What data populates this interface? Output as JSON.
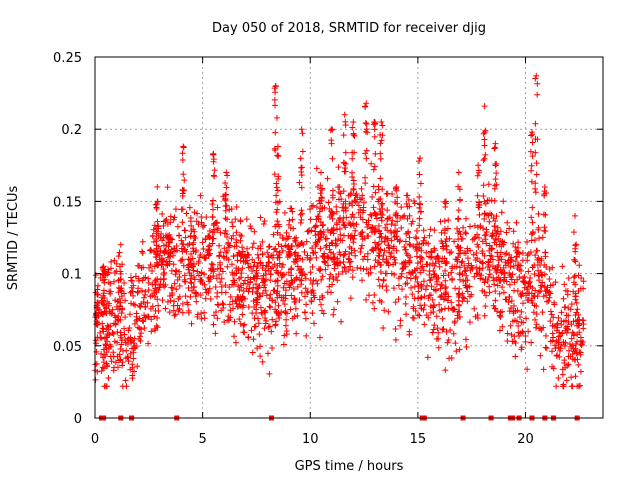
{
  "chart_data": {
    "type": "scatter",
    "title": "Day 050 of 2018, SRMTID for receiver djig",
    "xlabel": "GPS time / hours",
    "ylabel": "SRMTID / TECUs",
    "xlim": [
      0,
      23.6
    ],
    "ylim": [
      0,
      0.25
    ],
    "x_ticks": [
      0,
      5,
      10,
      15,
      20
    ],
    "y_ticks": [
      0,
      0.05,
      0.1,
      0.15,
      0.2,
      0.25
    ],
    "y_tick_labels": [
      "0",
      "0.05",
      "0.1",
      "0.15",
      "0.2",
      "0.25"
    ],
    "grid": true,
    "marker": "+",
    "color": "#ff0000",
    "trend": [
      {
        "x": 0.0,
        "y": 0.06
      },
      {
        "x": 0.5,
        "y": 0.058
      },
      {
        "x": 1.0,
        "y": 0.065
      },
      {
        "x": 1.5,
        "y": 0.06
      },
      {
        "x": 2.0,
        "y": 0.07
      },
      {
        "x": 2.5,
        "y": 0.09
      },
      {
        "x": 3.0,
        "y": 0.105
      },
      {
        "x": 3.5,
        "y": 0.112
      },
      {
        "x": 4.0,
        "y": 0.108
      },
      {
        "x": 4.5,
        "y": 0.112
      },
      {
        "x": 5.0,
        "y": 0.11
      },
      {
        "x": 5.5,
        "y": 0.108
      },
      {
        "x": 6.0,
        "y": 0.104
      },
      {
        "x": 6.5,
        "y": 0.1
      },
      {
        "x": 7.0,
        "y": 0.098
      },
      {
        "x": 7.5,
        "y": 0.094
      },
      {
        "x": 8.0,
        "y": 0.092
      },
      {
        "x": 8.5,
        "y": 0.1
      },
      {
        "x": 9.0,
        "y": 0.11
      },
      {
        "x": 9.5,
        "y": 0.104
      },
      {
        "x": 10.0,
        "y": 0.11
      },
      {
        "x": 10.5,
        "y": 0.115
      },
      {
        "x": 11.0,
        "y": 0.12
      },
      {
        "x": 11.5,
        "y": 0.125
      },
      {
        "x": 12.0,
        "y": 0.128
      },
      {
        "x": 12.5,
        "y": 0.126
      },
      {
        "x": 13.0,
        "y": 0.124
      },
      {
        "x": 13.5,
        "y": 0.118
      },
      {
        "x": 14.0,
        "y": 0.114
      },
      {
        "x": 14.5,
        "y": 0.108
      },
      {
        "x": 15.0,
        "y": 0.104
      },
      {
        "x": 15.5,
        "y": 0.094
      },
      {
        "x": 16.0,
        "y": 0.092
      },
      {
        "x": 16.5,
        "y": 0.09
      },
      {
        "x": 17.0,
        "y": 0.096
      },
      {
        "x": 17.5,
        "y": 0.104
      },
      {
        "x": 18.0,
        "y": 0.112
      },
      {
        "x": 18.5,
        "y": 0.108
      },
      {
        "x": 19.0,
        "y": 0.1
      },
      {
        "x": 19.5,
        "y": 0.088
      },
      {
        "x": 20.0,
        "y": 0.08
      },
      {
        "x": 20.5,
        "y": 0.1
      },
      {
        "x": 21.0,
        "y": 0.08
      },
      {
        "x": 21.5,
        "y": 0.058
      },
      {
        "x": 22.0,
        "y": 0.054
      },
      {
        "x": 22.5,
        "y": 0.062
      },
      {
        "x": 22.7,
        "y": 0.064
      }
    ],
    "spikes": [
      {
        "x": 0.1,
        "y": 0.08
      },
      {
        "x": 0.4,
        "y": 0.105
      },
      {
        "x": 1.2,
        "y": 0.12
      },
      {
        "x": 2.9,
        "y": 0.15
      },
      {
        "x": 4.1,
        "y": 0.188
      },
      {
        "x": 5.5,
        "y": 0.183
      },
      {
        "x": 6.1,
        "y": 0.17
      },
      {
        "x": 8.4,
        "y": 0.23
      },
      {
        "x": 8.5,
        "y": 0.188
      },
      {
        "x": 9.6,
        "y": 0.2
      },
      {
        "x": 10.5,
        "y": 0.17
      },
      {
        "x": 11.0,
        "y": 0.2
      },
      {
        "x": 11.6,
        "y": 0.21
      },
      {
        "x": 12.0,
        "y": 0.205
      },
      {
        "x": 12.6,
        "y": 0.218
      },
      {
        "x": 13.0,
        "y": 0.205
      },
      {
        "x": 13.3,
        "y": 0.205
      },
      {
        "x": 14.0,
        "y": 0.16
      },
      {
        "x": 15.1,
        "y": 0.18
      },
      {
        "x": 16.3,
        "y": 0.15
      },
      {
        "x": 16.9,
        "y": 0.17
      },
      {
        "x": 17.8,
        "y": 0.175
      },
      {
        "x": 18.1,
        "y": 0.216
      },
      {
        "x": 18.6,
        "y": 0.19
      },
      {
        "x": 20.3,
        "y": 0.198
      },
      {
        "x": 20.5,
        "y": 0.237
      },
      {
        "x": 20.9,
        "y": 0.16
      },
      {
        "x": 22.3,
        "y": 0.14
      }
    ],
    "zero_values_x": [
      0.3,
      0.4,
      1.2,
      1.7,
      3.8,
      8.2,
      15.2,
      15.3,
      17.1,
      18.4,
      19.3,
      19.4,
      19.7,
      20.3,
      20.9,
      21.3,
      22.4
    ]
  }
}
